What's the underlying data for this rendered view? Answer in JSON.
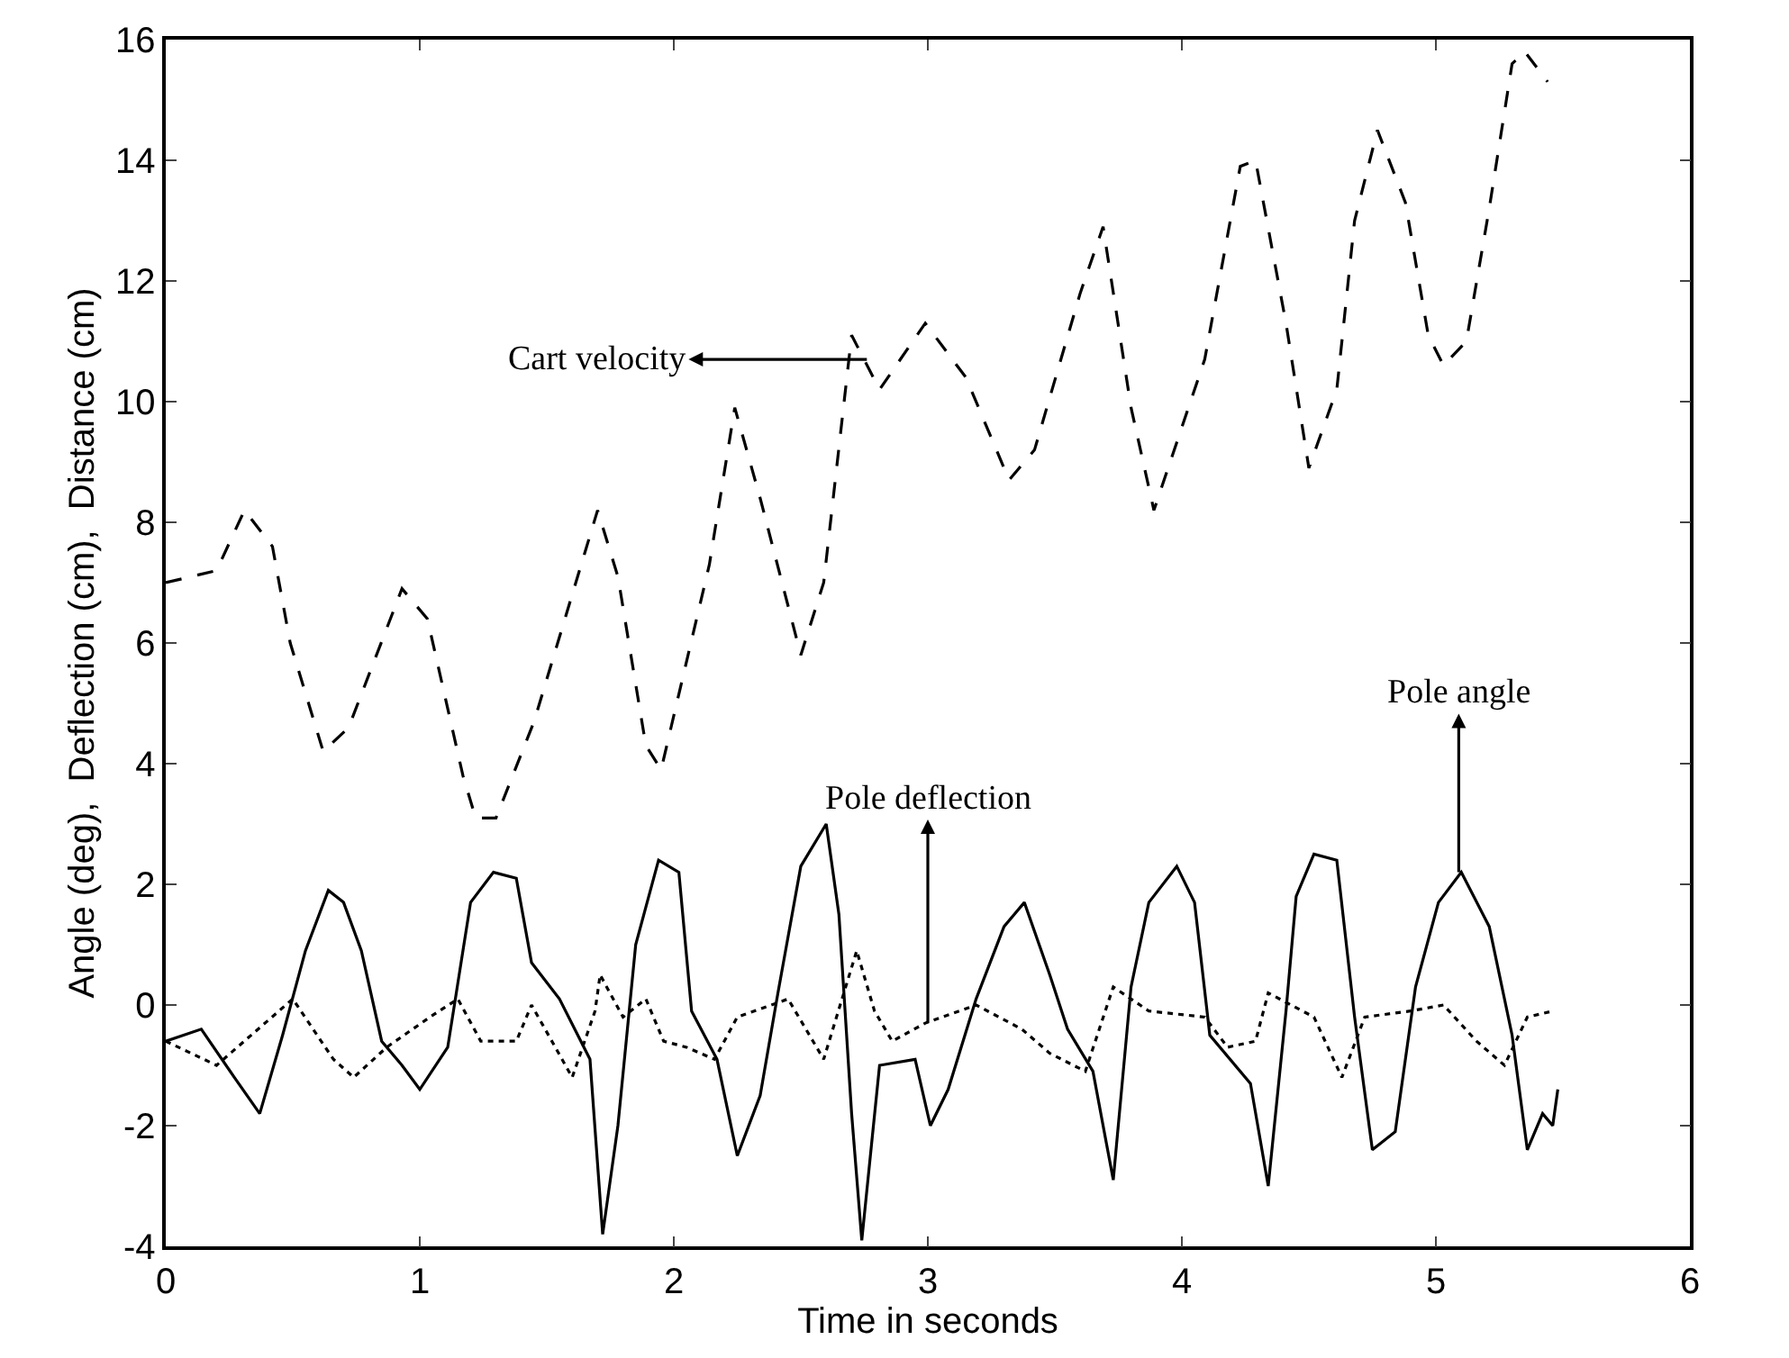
{
  "chart_data": {
    "type": "line",
    "xlabel": "Time in seconds",
    "ylabel": "Angle (deg),  Deflection (cm),  Distance (cm)",
    "xlim": [
      0,
      6
    ],
    "xticks": [
      0,
      1,
      2,
      3,
      4,
      5,
      6
    ],
    "ylim": [
      -4,
      16
    ],
    "yticks": [
      -4,
      -2,
      0,
      2,
      4,
      6,
      8,
      10,
      12,
      14,
      16
    ],
    "marker": "none",
    "series": [
      {
        "color": "#000000",
        "line_style": "dashed",
        "x": [
          0,
          0.2,
          0.31,
          0.42,
          0.49,
          0.62,
          0.72,
          0.93,
          1.03,
          1.17,
          1.22,
          1.3,
          1.45,
          1.65,
          1.7,
          1.78,
          1.89,
          1.95,
          2.14,
          2.24,
          2.34,
          2.5,
          2.59,
          2.7,
          2.81,
          2.99,
          3.15,
          3.32,
          3.42,
          3.6,
          3.69,
          3.8,
          3.89,
          4.09,
          4.23,
          4.29,
          4.41,
          4.5,
          4.61,
          4.68,
          4.77,
          4.88,
          4.97,
          5.03,
          5.12,
          5.21,
          5.3,
          5.35,
          5.44
        ],
        "values": [
          7.0,
          7.2,
          8.2,
          7.6,
          6.0,
          4.2,
          4.6,
          6.9,
          6.4,
          3.8,
          3.1,
          3.1,
          4.7,
          7.5,
          8.2,
          7.1,
          4.3,
          3.9,
          7.3,
          9.9,
          8.4,
          5.8,
          7.0,
          11.1,
          10.2,
          11.3,
          10.4,
          8.7,
          9.2,
          11.8,
          12.9,
          9.9,
          8.2,
          10.7,
          13.9,
          14.0,
          11.3,
          8.9,
          10.2,
          13.0,
          14.5,
          13.3,
          11.1,
          10.6,
          11.0,
          13.2,
          15.6,
          15.8,
          15.3
        ]
      },
      {
        "color": "#000000",
        "line_style": "solid",
        "x": [
          0,
          0.14,
          0.27,
          0.37,
          0.46,
          0.55,
          0.64,
          0.7,
          0.77,
          0.85,
          0.93,
          1.0,
          1.11,
          1.2,
          1.29,
          1.38,
          1.44,
          1.55,
          1.67,
          1.72,
          1.78,
          1.85,
          1.94,
          2.02,
          2.07,
          2.17,
          2.25,
          2.34,
          2.41,
          2.5,
          2.6,
          2.65,
          2.7,
          2.74,
          2.81,
          2.95,
          3.01,
          3.08,
          3.19,
          3.3,
          3.38,
          3.48,
          3.55,
          3.65,
          3.73,
          3.8,
          3.87,
          3.98,
          4.05,
          4.11,
          4.27,
          4.34,
          4.41,
          4.45,
          4.52,
          4.61,
          4.68,
          4.75,
          4.84,
          4.92,
          5.01,
          5.1,
          5.21,
          5.3,
          5.36,
          5.42,
          5.46,
          5.48
        ],
        "values": [
          -0.6,
          -0.4,
          -1.2,
          -1.8,
          -0.5,
          0.9,
          1.9,
          1.7,
          0.9,
          -0.6,
          -1.0,
          -1.4,
          -0.7,
          1.7,
          2.2,
          2.1,
          0.7,
          0.1,
          -0.9,
          -3.8,
          -2.0,
          1.0,
          2.4,
          2.2,
          -0.1,
          -0.9,
          -2.5,
          -1.5,
          0.2,
          2.3,
          3.0,
          1.5,
          -1.8,
          -3.9,
          -1.0,
          -0.9,
          -2.0,
          -1.4,
          0.1,
          1.3,
          1.7,
          0.5,
          -0.4,
          -1.1,
          -2.9,
          0.3,
          1.7,
          2.3,
          1.7,
          -0.5,
          -1.3,
          -3.0,
          -0.1,
          1.8,
          2.5,
          2.4,
          -0.2,
          -2.4,
          -2.1,
          0.3,
          1.7,
          2.2,
          1.3,
          -0.5,
          -2.4,
          -1.8,
          -2.0,
          -1.4
        ]
      },
      {
        "color": "#000000",
        "line_style": "dotted",
        "x": [
          0,
          0.2,
          0.5,
          0.66,
          0.74,
          0.87,
          1.04,
          1.15,
          1.24,
          1.38,
          1.44,
          1.6,
          1.69,
          1.71,
          1.8,
          1.89,
          1.96,
          2.05,
          2.16,
          2.25,
          2.45,
          2.59,
          2.72,
          2.79,
          2.86,
          2.99,
          3.19,
          3.37,
          3.48,
          3.62,
          3.73,
          3.87,
          4.09,
          4.18,
          4.29,
          4.34,
          4.52,
          4.63,
          4.72,
          4.9,
          5.03,
          5.16,
          5.27,
          5.36,
          5.46
        ],
        "values": [
          -0.6,
          -1.0,
          0.1,
          -0.9,
          -1.2,
          -0.7,
          -0.2,
          0.1,
          -0.6,
          -0.6,
          0.0,
          -1.2,
          -0.1,
          0.5,
          -0.2,
          0.1,
          -0.6,
          -0.7,
          -0.9,
          -0.2,
          0.1,
          -0.9,
          0.9,
          -0.1,
          -0.6,
          -0.3,
          0.0,
          -0.4,
          -0.8,
          -1.1,
          0.3,
          -0.1,
          -0.2,
          -0.7,
          -0.6,
          0.2,
          -0.2,
          -1.2,
          -0.2,
          -0.1,
          0.0,
          -0.6,
          -1.0,
          -0.2,
          -0.1
        ]
      }
    ],
    "annotations": [
      {
        "text": "Cart velocity",
        "x": 2.76,
        "y": 10.7
      },
      {
        "text": "Pole deflection",
        "x": 3.0,
        "y": -0.3
      },
      {
        "text": "Pole angle",
        "x": 5.09,
        "y": 2.2
      }
    ]
  }
}
